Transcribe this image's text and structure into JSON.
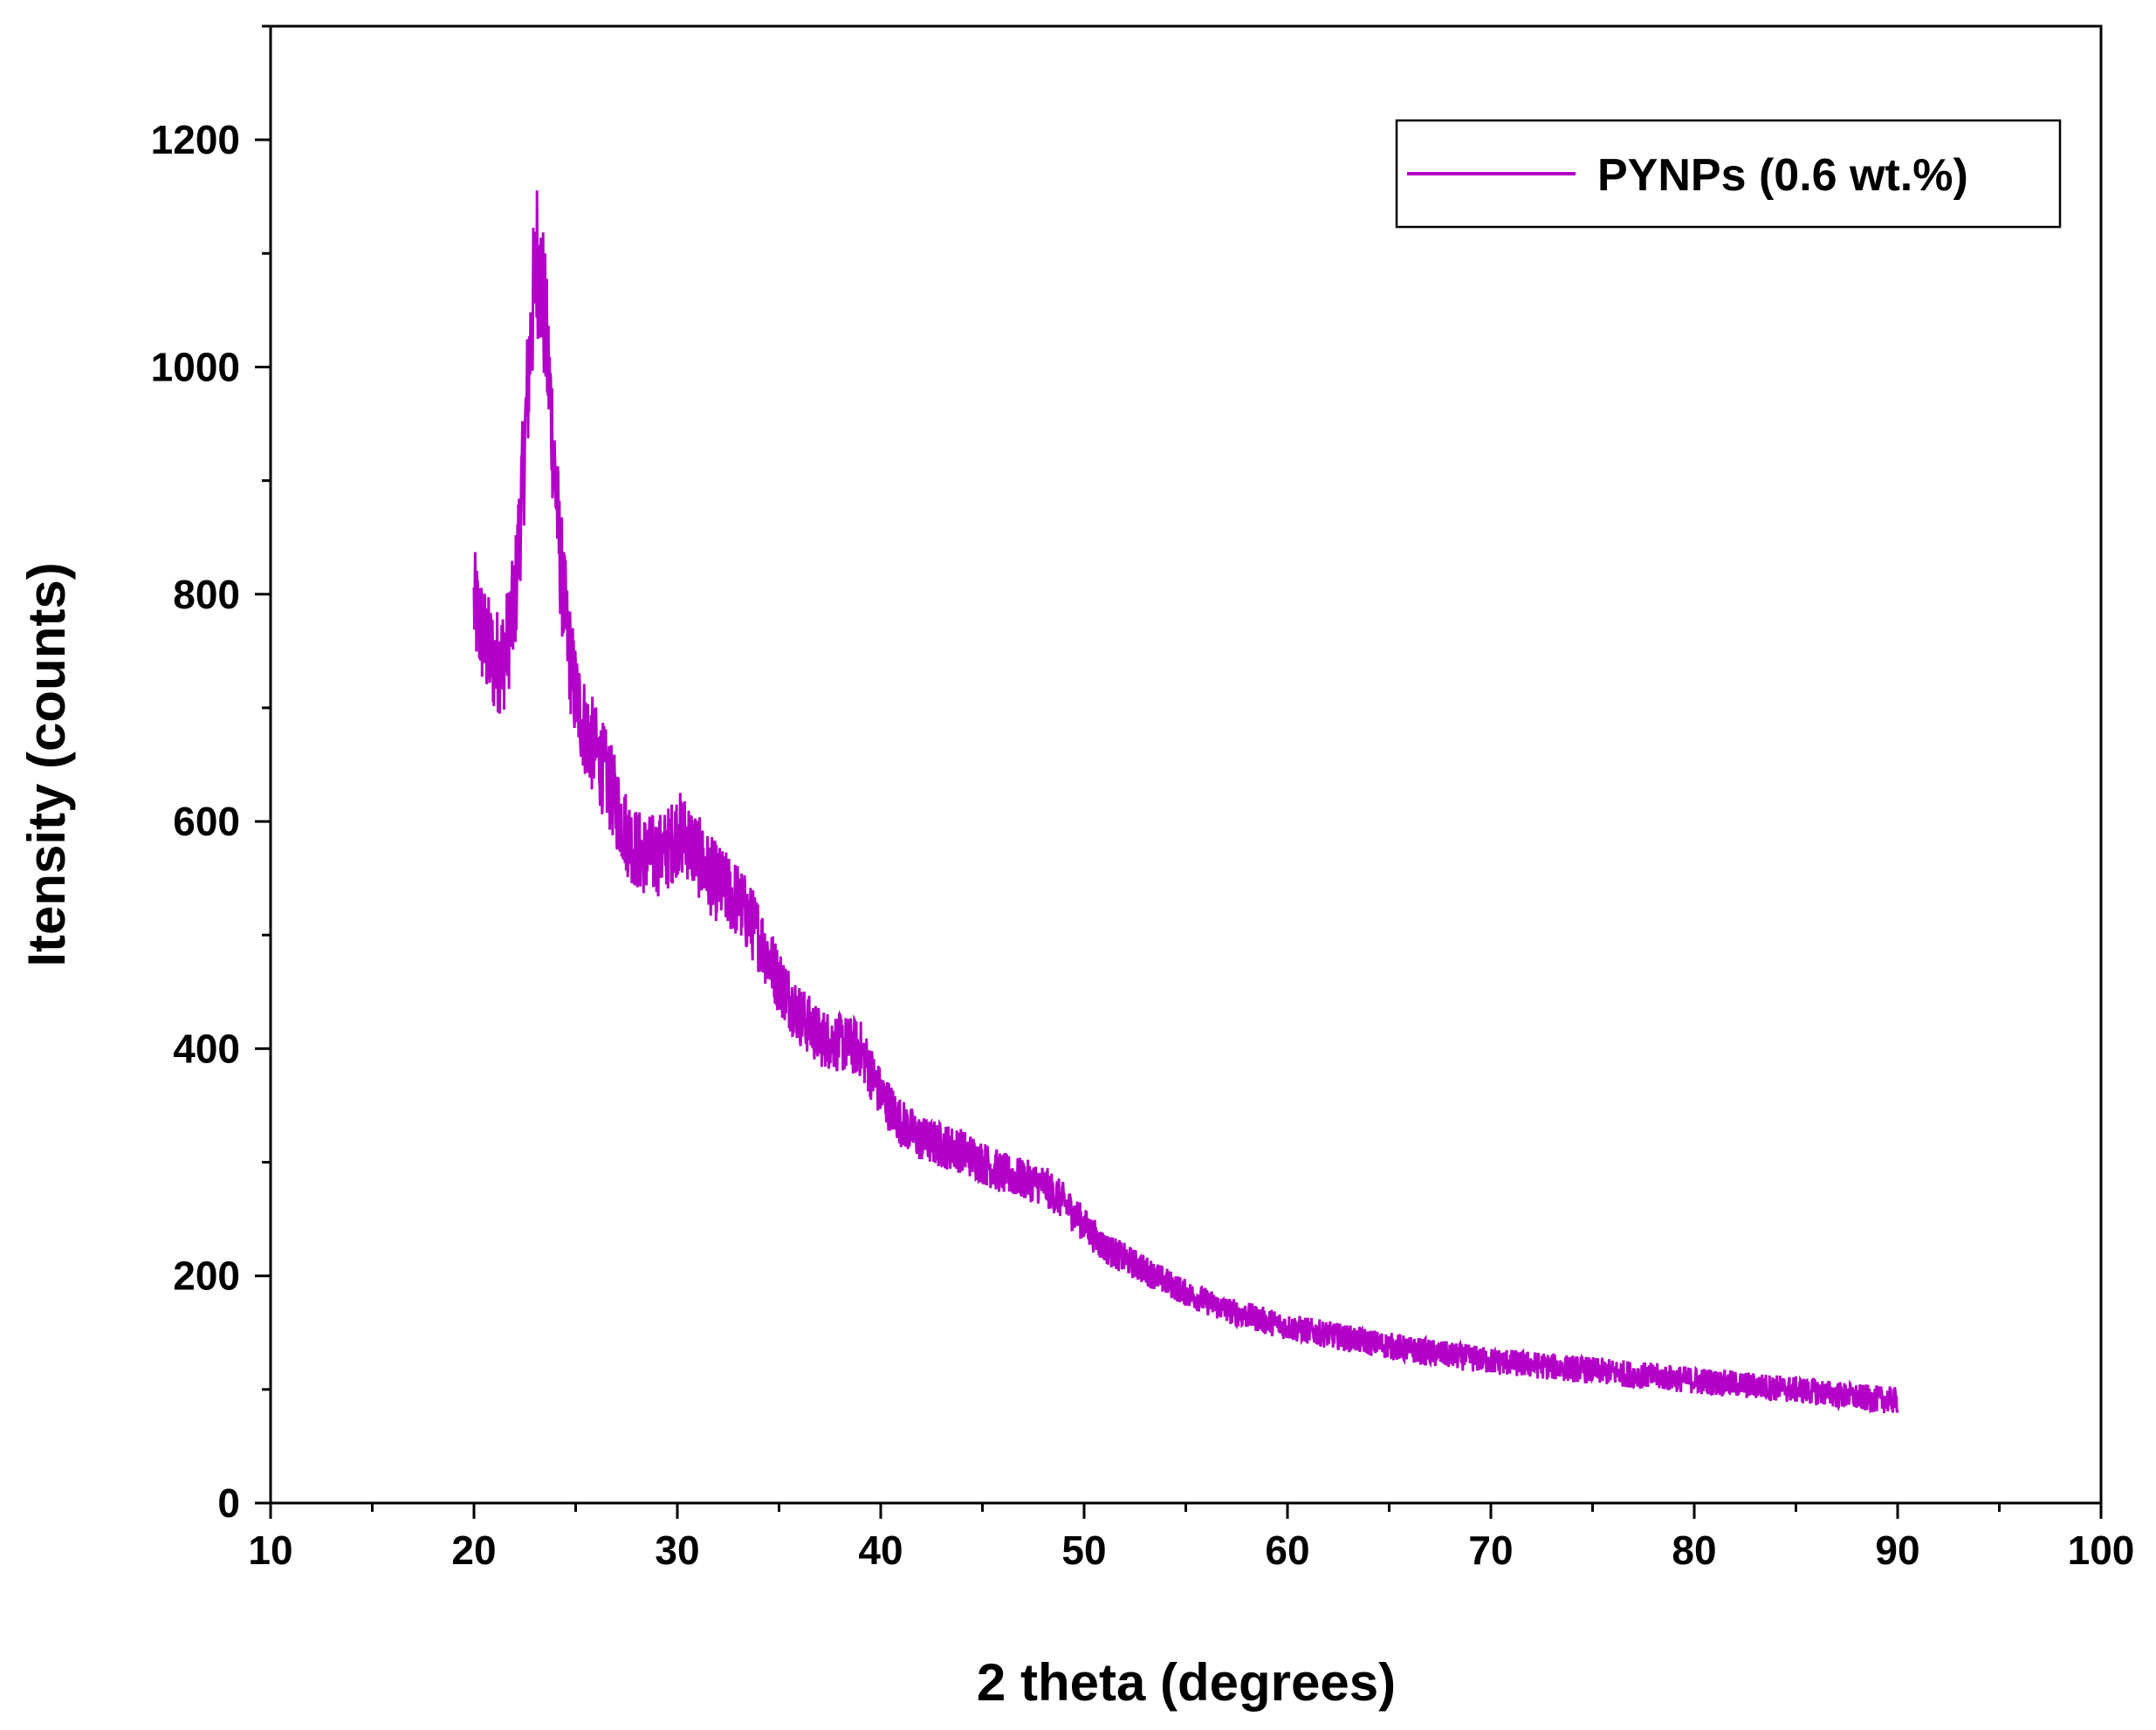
{
  "chart_data": {
    "type": "line",
    "title": "",
    "xlabel": "2 theta (degrees)",
    "ylabel": "Itensity (counts)",
    "xlim": [
      10,
      100
    ],
    "ylim": [
      0,
      1300
    ],
    "xticks": [
      10,
      20,
      30,
      40,
      50,
      60,
      70,
      80,
      90,
      100
    ],
    "yticks": [
      0,
      200,
      400,
      600,
      800,
      1000,
      1200
    ],
    "xtick_labels": [
      "10",
      "20",
      "30",
      "40",
      "50",
      "60",
      "70",
      "80",
      "90",
      "100"
    ],
    "ytick_labels": [
      "0",
      "200",
      "400",
      "600",
      "800",
      "1000",
      "1200"
    ],
    "grid": false,
    "legend_position": "top-right",
    "series": [
      {
        "name": "PYNPs (0.6 wt.%)",
        "color": "#b300c8",
        "x": [
          20,
          20.5,
          21,
          21.5,
          22,
          22.4,
          22.8,
          23.1,
          23.4,
          23.8,
          24.2,
          24.6,
          25,
          25.5,
          26,
          26.5,
          27,
          27.5,
          28,
          28.5,
          29,
          29.5,
          30,
          30.5,
          31,
          31.5,
          32,
          33,
          34,
          35,
          36,
          37,
          38,
          39,
          40,
          41,
          42,
          43,
          44,
          45,
          46,
          47,
          48,
          49,
          50,
          51,
          52,
          53,
          55,
          57,
          60,
          63,
          66,
          70,
          73,
          76,
          80,
          83,
          86,
          88,
          90
        ],
        "y": [
          790,
          760,
          740,
          745,
          790,
          900,
          1030,
          1100,
          1060,
          960,
          840,
          760,
          710,
          680,
          660,
          640,
          615,
          590,
          575,
          570,
          570,
          575,
          590,
          585,
          570,
          555,
          545,
          530,
          500,
          460,
          430,
          410,
          405,
          400,
          360,
          335,
          320,
          315,
          310,
          300,
          290,
          285,
          280,
          265,
          245,
          225,
          215,
          205,
          185,
          170,
          155,
          145,
          135,
          125,
          120,
          115,
          108,
          103,
          98,
          93,
          90
        ]
      }
    ]
  }
}
